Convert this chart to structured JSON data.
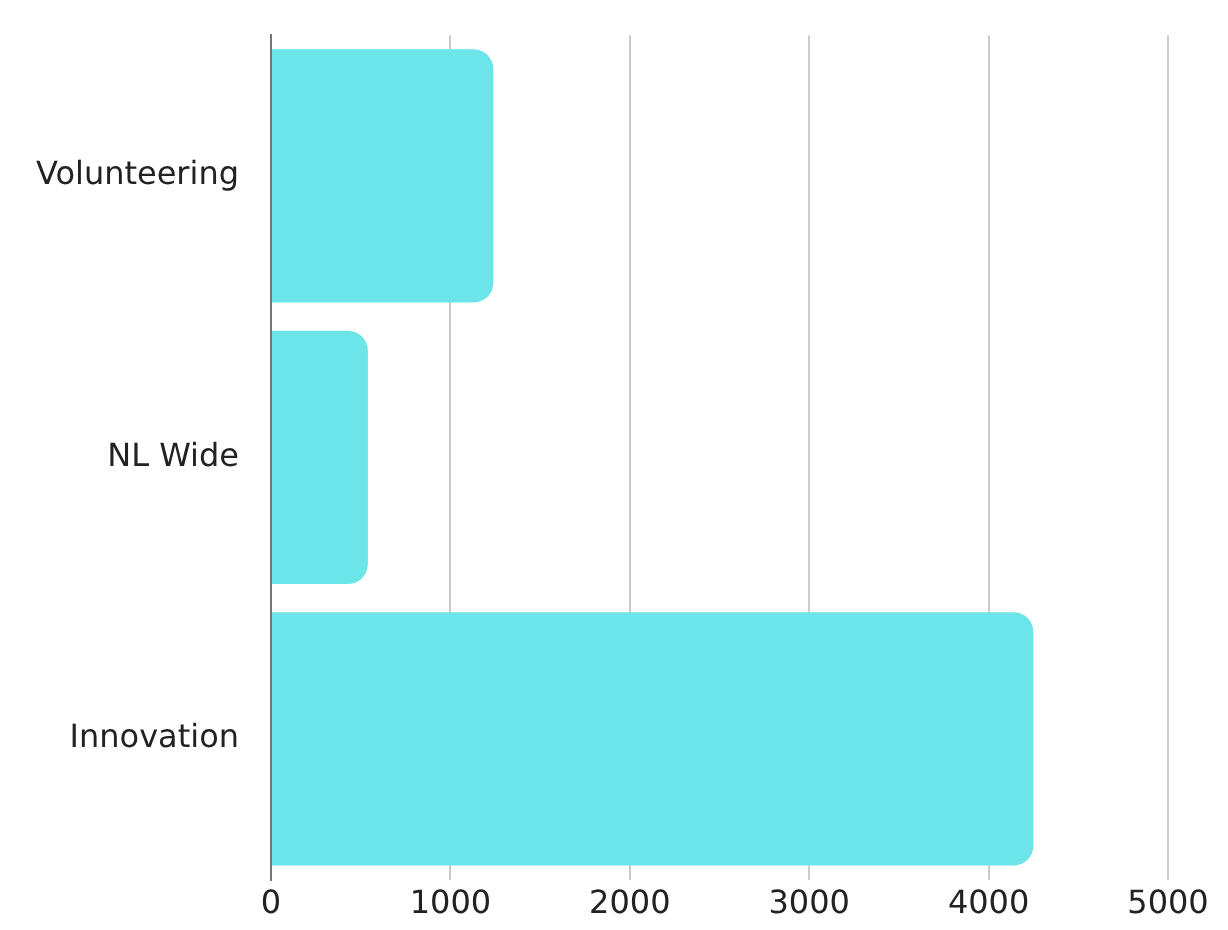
{
  "chart_data": {
    "type": "bar",
    "orientation": "horizontal",
    "categories": [
      "Volunteering",
      "NL Wide",
      "Innovation"
    ],
    "values": [
      1240,
      540,
      4250
    ],
    "color": "#6ce5e8",
    "xlim": [
      0,
      5000
    ],
    "xticks": [
      0,
      1000,
      2000,
      3000,
      4000,
      5000
    ],
    "grid": "x",
    "legend": false
  }
}
